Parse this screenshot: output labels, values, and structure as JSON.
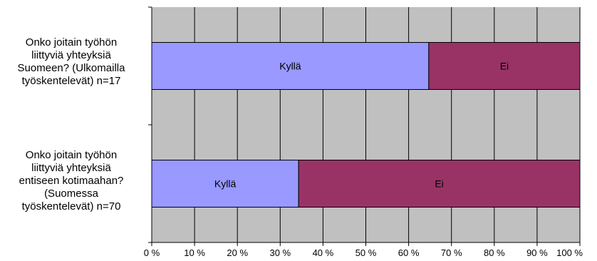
{
  "chart_data": {
    "type": "bar",
    "orientation": "horizontal",
    "stacked": "percent",
    "categories": [
      "Onko joitain työhön liittyviä yhteyksiä Suomeen? (Ulkomailla työskentelevät) n=17",
      "Onko joitain työhön liittyviä yhteyksiä entiseen kotimaahan? (Suomessa työskentelevät) n=70"
    ],
    "category_lines": [
      [
        "Onko joitain työhön",
        "liittyviä yhteyksiä",
        "Suomeen? (Ulkomailla",
        "työskentelevät) n=17"
      ],
      [
        "Onko joitain työhön",
        "liittyviä yhteyksiä",
        "entiseen kotimaahan?",
        "(Suomessa",
        "työskentelevät) n=70"
      ]
    ],
    "series": [
      {
        "name": "Kyllä",
        "values": [
          64.7,
          34.3
        ],
        "color": "#9999ff"
      },
      {
        "name": "Ei",
        "values": [
          35.3,
          65.7
        ],
        "color": "#993366"
      }
    ],
    "xlim": [
      0,
      100
    ],
    "xticks": [
      "0 %",
      "10 %",
      "20 %",
      "30 %",
      "40 %",
      "50 %",
      "60 %",
      "70 %",
      "80 %",
      "90 %",
      "100 %"
    ],
    "grid": true,
    "legend": "none",
    "plot_background": "#c0c0c0"
  }
}
